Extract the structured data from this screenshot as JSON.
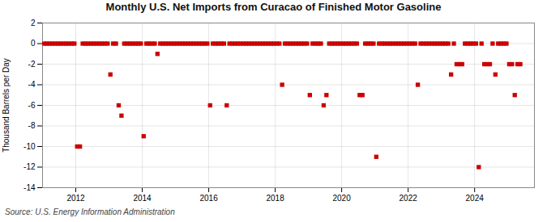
{
  "chart_data": {
    "type": "scatter",
    "title": "Monthly U.S. Net Imports from Curacao of Finished Motor Gasoline",
    "ylabel": "Thousand Barrels per Day",
    "source": "Source: U.S. Energy Information Administration",
    "color": "#cc0000",
    "marker": "square",
    "grid": true,
    "ylim": [
      -14,
      2
    ],
    "yticks": [
      2,
      0,
      -2,
      -4,
      -6,
      -8,
      -10,
      -12,
      -14
    ],
    "xlim": [
      2011.0,
      2025.8
    ],
    "xticks": [
      2012,
      2014,
      2016,
      2018,
      2020,
      2022,
      2024
    ],
    "x": [
      2011.041667,
      2011.125,
      2011.208333,
      2011.291667,
      2011.375,
      2011.458333,
      2011.541667,
      2011.625,
      2011.708333,
      2011.791667,
      2011.875,
      2011.958333,
      2012.041667,
      2012.125,
      2012.208333,
      2012.291667,
      2012.375,
      2012.458333,
      2012.541667,
      2012.625,
      2012.708333,
      2012.791667,
      2012.875,
      2012.958333,
      2013.041667,
      2013.125,
      2013.208333,
      2013.291667,
      2013.375,
      2013.458333,
      2013.541667,
      2013.625,
      2013.708333,
      2013.791667,
      2013.875,
      2013.958333,
      2014.041667,
      2014.125,
      2014.208333,
      2014.291667,
      2014.375,
      2014.458333,
      2014.541667,
      2014.625,
      2014.708333,
      2014.791667,
      2014.875,
      2014.958333,
      2015.041667,
      2015.125,
      2015.208333,
      2015.291667,
      2015.375,
      2015.458333,
      2015.541667,
      2015.625,
      2015.708333,
      2015.791667,
      2015.875,
      2015.958333,
      2016.041667,
      2016.125,
      2016.208333,
      2016.291667,
      2016.375,
      2016.458333,
      2016.541667,
      2016.625,
      2016.708333,
      2016.791667,
      2016.875,
      2016.958333,
      2017.041667,
      2017.125,
      2017.208333,
      2017.291667,
      2017.375,
      2017.458333,
      2017.541667,
      2017.625,
      2017.708333,
      2017.791667,
      2017.875,
      2017.958333,
      2018.041667,
      2018.125,
      2018.208333,
      2018.291667,
      2018.375,
      2018.458333,
      2018.541667,
      2018.625,
      2018.708333,
      2018.791667,
      2018.875,
      2018.958333,
      2019.041667,
      2019.125,
      2019.208333,
      2019.291667,
      2019.375,
      2019.458333,
      2019.541667,
      2019.625,
      2019.708333,
      2019.791667,
      2019.875,
      2019.958333,
      2020.041667,
      2020.125,
      2020.208333,
      2020.291667,
      2020.375,
      2020.458333,
      2020.541667,
      2020.625,
      2020.708333,
      2020.791667,
      2020.875,
      2020.958333,
      2021.041667,
      2021.125,
      2021.208333,
      2021.291667,
      2021.375,
      2021.458333,
      2021.541667,
      2021.625,
      2021.708333,
      2021.791667,
      2021.875,
      2021.958333,
      2022.041667,
      2022.125,
      2022.208333,
      2022.291667,
      2022.375,
      2022.458333,
      2022.541667,
      2022.625,
      2022.708333,
      2022.791667,
      2022.875,
      2022.958333,
      2023.041667,
      2023.125,
      2023.208333,
      2023.291667,
      2023.375,
      2023.458333,
      2023.541667,
      2023.625,
      2023.708333,
      2023.791667,
      2023.875,
      2023.958333,
      2024.041667,
      2024.125,
      2024.208333,
      2024.291667,
      2024.375,
      2024.458333,
      2024.541667,
      2024.625,
      2024.708333,
      2024.791667,
      2024.875,
      2024.958333,
      2025.041667,
      2025.125,
      2025.208333,
      2025.291667,
      2025.375
    ],
    "values": [
      0,
      0,
      0,
      0,
      0,
      0,
      0,
      0,
      0,
      0,
      0,
      0,
      -10,
      -10,
      0,
      0,
      0,
      0,
      0,
      0,
      0,
      0,
      0,
      0,
      -3,
      0,
      0,
      -6,
      -7,
      0,
      0,
      0,
      0,
      0,
      0,
      0,
      -9,
      0,
      0,
      0,
      0,
      -1,
      0,
      0,
      0,
      0,
      0,
      0,
      0,
      0,
      0,
      0,
      0,
      0,
      0,
      0,
      0,
      0,
      0,
      0,
      -6,
      0,
      0,
      0,
      0,
      0,
      -6,
      0,
      0,
      0,
      0,
      0,
      0,
      0,
      0,
      0,
      0,
      0,
      0,
      0,
      0,
      0,
      0,
      0,
      0,
      0,
      -4,
      0,
      0,
      0,
      0,
      0,
      0,
      0,
      0,
      0,
      -5,
      0,
      0,
      0,
      0,
      -6,
      -5,
      0,
      0,
      0,
      0,
      0,
      0,
      0,
      0,
      0,
      0,
      0,
      -5,
      -5,
      0,
      0,
      0,
      0,
      -11,
      0,
      0,
      0,
      0,
      0,
      0,
      0,
      0,
      0,
      0,
      0,
      0,
      0,
      0,
      -4,
      0,
      0,
      0,
      0,
      0,
      0,
      0,
      0,
      0,
      0,
      0,
      -3,
      0,
      -2,
      -2,
      -2,
      0,
      0,
      0,
      0,
      0,
      -12,
      0,
      -2,
      -2,
      -2,
      0,
      -3,
      0,
      0,
      0,
      0,
      -2,
      -2,
      -5,
      -2,
      -2
    ]
  }
}
